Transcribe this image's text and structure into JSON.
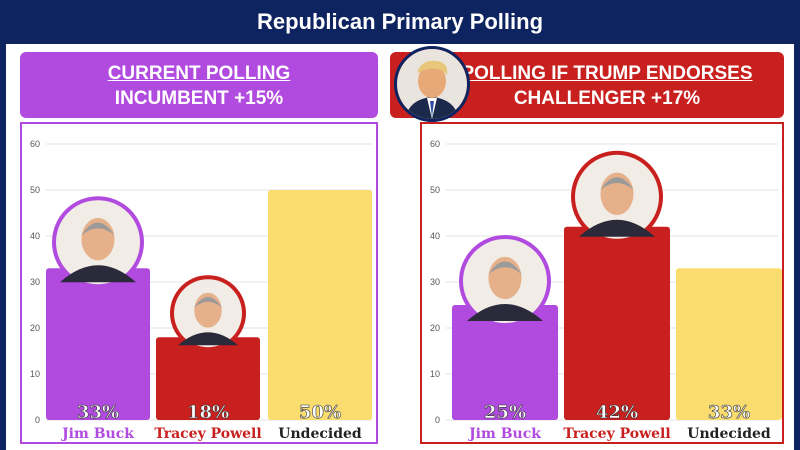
{
  "title": "Republican Primary Polling",
  "colors": {
    "background": "#0d2461",
    "purple": "#b14be0",
    "red": "#c8201e",
    "yellow": "#fadd6e",
    "gold_text": "#8a6d00"
  },
  "left_banner": {
    "line1": "CURRENT POLLING",
    "line2": "INCUMBENT +15%"
  },
  "right_banner": {
    "line1": "POLLING IF TRUMP ENDORSES",
    "line2": "CHALLENGER +17%"
  },
  "chart_data": [
    {
      "type": "bar",
      "title": "CURRENT POLLING",
      "categories": [
        "Jim Buck",
        "Tracey Powell",
        "Undecided"
      ],
      "values": [
        33,
        18,
        50
      ],
      "labels": [
        "33%",
        "18%",
        "50%"
      ],
      "bar_colors": [
        "#b14be0",
        "#c8201e",
        "#fadd6e"
      ],
      "label_colors": [
        "#b14be0",
        "#c8201e",
        "#222222"
      ],
      "yticks": [
        0,
        10,
        20,
        30,
        40,
        50,
        60
      ],
      "ylim": [
        0,
        60
      ],
      "grid": true
    },
    {
      "type": "bar",
      "title": "POLLING IF TRUMP ENDORSES",
      "categories": [
        "Jim Buck",
        "Tracey Powell",
        "Undecided"
      ],
      "values": [
        25,
        42,
        33
      ],
      "labels": [
        "25%",
        "42%",
        "33%"
      ],
      "bar_colors": [
        "#b14be0",
        "#c8201e",
        "#fadd6e"
      ],
      "label_colors": [
        "#b14be0",
        "#c8201e",
        "#222222"
      ],
      "yticks": [
        0,
        10,
        20,
        30,
        40,
        50,
        60
      ],
      "ylim": [
        0,
        60
      ],
      "grid": true
    }
  ]
}
